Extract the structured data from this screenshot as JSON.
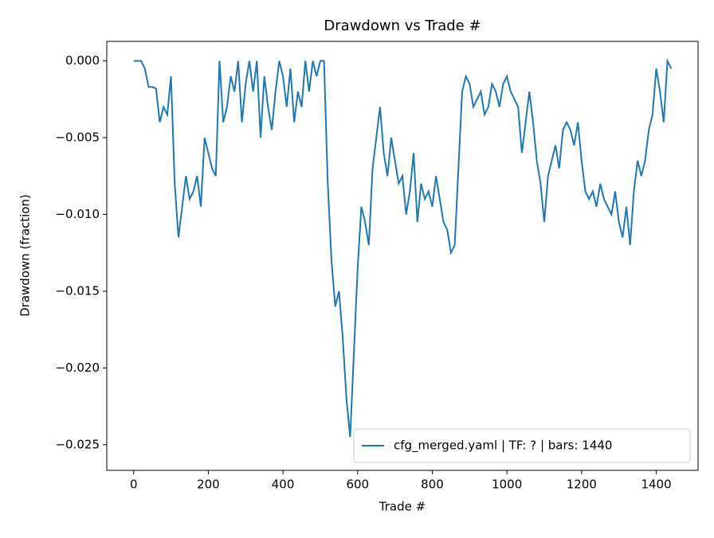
{
  "chart_data": {
    "type": "line",
    "title": "Drawdown vs Trade #",
    "xlabel": "Trade #",
    "ylabel": "Drawdown (fraction)",
    "x": [
      0,
      10,
      20,
      30,
      40,
      50,
      60,
      70,
      80,
      90,
      100,
      110,
      120,
      130,
      140,
      150,
      160,
      170,
      180,
      190,
      200,
      210,
      220,
      230,
      240,
      250,
      260,
      270,
      280,
      290,
      300,
      310,
      320,
      330,
      340,
      350,
      360,
      370,
      380,
      390,
      400,
      410,
      420,
      430,
      440,
      450,
      460,
      470,
      480,
      490,
      500,
      510,
      520,
      530,
      540,
      550,
      560,
      570,
      580,
      590,
      600,
      610,
      620,
      630,
      640,
      650,
      660,
      670,
      680,
      690,
      700,
      710,
      720,
      730,
      740,
      750,
      760,
      770,
      780,
      790,
      800,
      810,
      820,
      830,
      840,
      850,
      860,
      870,
      880,
      890,
      900,
      910,
      920,
      930,
      940,
      950,
      960,
      970,
      980,
      990,
      1000,
      1010,
      1020,
      1030,
      1040,
      1050,
      1060,
      1070,
      1080,
      1090,
      1100,
      1110,
      1120,
      1130,
      1140,
      1150,
      1160,
      1170,
      1180,
      1190,
      1200,
      1210,
      1220,
      1230,
      1240,
      1250,
      1260,
      1270,
      1280,
      1290,
      1300,
      1310,
      1320,
      1330,
      1340,
      1350,
      1360,
      1370,
      1380,
      1390,
      1400,
      1410,
      1420,
      1430,
      1440
    ],
    "series": [
      {
        "name": "cfg_merged.yaml | TF: ? | bars: 1440",
        "color": "#1f77b4",
        "values": [
          0,
          0,
          0,
          -0.0005,
          -0.0017,
          -0.0017,
          -0.0018,
          -0.004,
          -0.003,
          -0.0035,
          -0.001,
          -0.008,
          -0.0115,
          -0.0095,
          -0.0075,
          -0.009,
          -0.0085,
          -0.0075,
          -0.0095,
          -0.005,
          -0.006,
          -0.007,
          -0.0075,
          0,
          -0.004,
          -0.003,
          -0.001,
          -0.002,
          0,
          -0.004,
          -0.0015,
          0,
          -0.002,
          0,
          -0.005,
          -0.001,
          -0.003,
          -0.0045,
          -0.002,
          0,
          -0.001,
          -0.003,
          -0.0005,
          -0.004,
          -0.002,
          -0.003,
          0,
          -0.002,
          0,
          -0.001,
          0,
          0,
          -0.008,
          -0.013,
          -0.016,
          -0.015,
          -0.018,
          -0.022,
          -0.0245,
          -0.019,
          -0.0135,
          -0.0095,
          -0.0105,
          -0.012,
          -0.007,
          -0.005,
          -0.003,
          -0.006,
          -0.0075,
          -0.005,
          -0.0065,
          -0.008,
          -0.0075,
          -0.01,
          -0.0085,
          -0.006,
          -0.0105,
          -0.008,
          -0.009,
          -0.0085,
          -0.0095,
          -0.0075,
          -0.009,
          -0.0105,
          -0.011,
          -0.0125,
          -0.012,
          -0.007,
          -0.002,
          -0.001,
          -0.0015,
          -0.003,
          -0.0025,
          -0.002,
          -0.0035,
          -0.003,
          -0.0015,
          -0.002,
          -0.003,
          -0.0015,
          -0.001,
          -0.002,
          -0.0025,
          -0.003,
          -0.006,
          -0.004,
          -0.002,
          -0.004,
          -0.0065,
          -0.008,
          -0.0105,
          -0.0075,
          -0.0065,
          -0.0055,
          -0.007,
          -0.0045,
          -0.004,
          -0.0045,
          -0.0055,
          -0.004,
          -0.0065,
          -0.0085,
          -0.009,
          -0.0085,
          -0.0095,
          -0.008,
          -0.009,
          -0.0095,
          -0.01,
          -0.0085,
          -0.0105,
          -0.0115,
          -0.0095,
          -0.012,
          -0.0085,
          -0.0065,
          -0.0075,
          -0.0065,
          -0.0045,
          -0.0035,
          -0.0005,
          -0.002,
          -0.004,
          0,
          -0.0005
        ]
      }
    ],
    "xlim": [
      -72,
      1512
    ],
    "ylim": [
      -0.02667,
      0.00127
    ],
    "xticks": [
      0,
      200,
      400,
      600,
      800,
      1000,
      1200,
      1400
    ],
    "yticks": [
      {
        "value": 0,
        "label": "0.000"
      },
      {
        "value": -0.005,
        "label": "−0.005"
      },
      {
        "value": -0.01,
        "label": "−0.010"
      },
      {
        "value": -0.015,
        "label": "−0.015"
      },
      {
        "value": -0.02,
        "label": "−0.020"
      },
      {
        "value": -0.025,
        "label": "−0.025"
      }
    ],
    "grid": false,
    "legend": "lower right"
  }
}
